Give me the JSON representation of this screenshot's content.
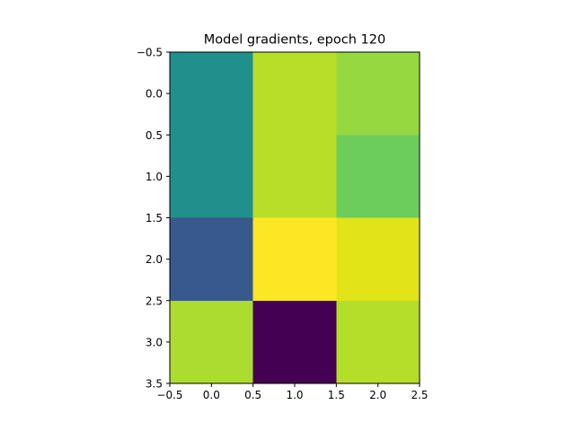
{
  "chart_data": {
    "type": "heatmap",
    "title": "Model gradients, epoch 120",
    "xlabel": "",
    "ylabel": "",
    "colormap": "viridis",
    "x_range": [
      -0.5,
      2.5
    ],
    "y_range": [
      -0.5,
      3.5
    ],
    "y_inverted": true,
    "x_ticks": [
      "−0.5",
      "0.0",
      "0.5",
      "1.0",
      "1.5",
      "2.0",
      "2.5"
    ],
    "y_ticks": [
      "−0.5",
      "0.0",
      "0.5",
      "1.0",
      "1.5",
      "2.0",
      "2.5",
      "3.0",
      "3.5"
    ],
    "cells": [
      {
        "x": [
          -0.5,
          0.5
        ],
        "y": [
          -0.5,
          1.5
        ],
        "color": "#21908d"
      },
      {
        "x": [
          0.5,
          1.5
        ],
        "y": [
          -0.5,
          1.5
        ],
        "color": "#b8de29"
      },
      {
        "x": [
          1.5,
          2.5
        ],
        "y": [
          -0.5,
          0.5
        ],
        "color": "#95d840"
      },
      {
        "x": [
          1.5,
          2.5
        ],
        "y": [
          0.5,
          1.5
        ],
        "color": "#6ccd5a"
      },
      {
        "x": [
          -0.5,
          0.5
        ],
        "y": [
          1.5,
          2.5
        ],
        "color": "#38598c"
      },
      {
        "x": [
          0.5,
          1.5
        ],
        "y": [
          1.5,
          2.5
        ],
        "color": "#fde725"
      },
      {
        "x": [
          1.5,
          2.5
        ],
        "y": [
          1.5,
          2.5
        ],
        "color": "#e2e418"
      },
      {
        "x": [
          -0.5,
          0.5
        ],
        "y": [
          2.5,
          3.5
        ],
        "color": "#addc30"
      },
      {
        "x": [
          0.5,
          1.5
        ],
        "y": [
          2.5,
          3.5
        ],
        "color": "#440154"
      },
      {
        "x": [
          1.5,
          2.5
        ],
        "y": [
          2.5,
          3.5
        ],
        "color": "#b5de2b"
      }
    ]
  }
}
